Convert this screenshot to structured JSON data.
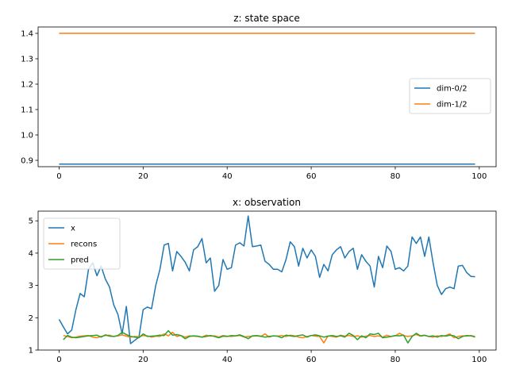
{
  "chart_data": [
    {
      "type": "line",
      "title": "z: state space",
      "xlabel": "",
      "ylabel": "",
      "xlim": [
        -5,
        104
      ],
      "ylim": [
        0.875,
        1.425
      ],
      "xticks": [
        0,
        20,
        40,
        60,
        80,
        100
      ],
      "yticks": [
        0.9,
        1.0,
        1.1,
        1.2,
        1.3,
        1.4
      ],
      "ytick_labels": [
        "0.9",
        "1.0",
        "1.1",
        "1.2",
        "1.3",
        "1.4"
      ],
      "legend_position": "center-right",
      "grid": false,
      "series": [
        {
          "name": "dim-0/2",
          "color": "#1f77b4",
          "x_range": [
            0,
            99
          ],
          "constant": 0.885
        },
        {
          "name": "dim-1/2",
          "color": "#ff7f0e",
          "x_range": [
            0,
            99
          ],
          "constant": 1.4
        }
      ]
    },
    {
      "type": "line",
      "title": "x: observation",
      "xlabel": "",
      "ylabel": "",
      "xlim": [
        -5,
        104
      ],
      "ylim": [
        1.0,
        5.3
      ],
      "xticks": [
        0,
        20,
        40,
        60,
        80,
        100
      ],
      "yticks": [
        1,
        2,
        3,
        4,
        5
      ],
      "ytick_labels": [
        "1",
        "2",
        "3",
        "4",
        "5"
      ],
      "legend_position": "top-left",
      "grid": false,
      "series": [
        {
          "name": "x",
          "color": "#1f77b4",
          "x_start": 0,
          "values": [
            1.95,
            1.72,
            1.5,
            1.62,
            2.25,
            2.75,
            2.65,
            3.5,
            3.7,
            3.3,
            3.6,
            3.2,
            2.95,
            2.4,
            2.1,
            1.5,
            2.35,
            1.2,
            1.3,
            1.4,
            2.25,
            2.33,
            2.28,
            3.0,
            3.5,
            4.25,
            4.3,
            3.45,
            4.05,
            3.9,
            3.72,
            3.45,
            4.1,
            4.2,
            4.45,
            3.7,
            3.85,
            2.82,
            3.0,
            3.8,
            3.5,
            3.55,
            4.25,
            4.32,
            4.22,
            5.15,
            4.2,
            4.22,
            4.25,
            3.75,
            3.65,
            3.5,
            3.5,
            3.42,
            3.8,
            4.35,
            4.2,
            3.6,
            4.15,
            3.85,
            4.1,
            3.9,
            3.25,
            3.65,
            3.45,
            3.95,
            4.1,
            4.2,
            3.85,
            4.05,
            4.15,
            3.5,
            3.95,
            3.75,
            3.6,
            2.95,
            3.9,
            3.55,
            4.22,
            4.05,
            3.5,
            3.55,
            3.45,
            3.6,
            4.5,
            4.3,
            4.5,
            3.9,
            4.5,
            3.7,
            3.0,
            2.72,
            2.9,
            2.95,
            2.9,
            3.6,
            3.62,
            3.4,
            3.28,
            3.27
          ]
        },
        {
          "name": "recons",
          "color": "#ff7f0e",
          "x_start": 1,
          "values": [
            1.45,
            1.42,
            1.38,
            1.4,
            1.43,
            1.44,
            1.45,
            1.4,
            1.38,
            1.42,
            1.45,
            1.46,
            1.42,
            1.44,
            1.47,
            1.43,
            1.4,
            1.42,
            1.41,
            1.45,
            1.44,
            1.4,
            1.43,
            1.42,
            1.5,
            1.44,
            1.55,
            1.42,
            1.45,
            1.4,
            1.44,
            1.43,
            1.42,
            1.4,
            1.46,
            1.43,
            1.44,
            1.4,
            1.45,
            1.43,
            1.42,
            1.44,
            1.45,
            1.4,
            1.42,
            1.43,
            1.44,
            1.42,
            1.5,
            1.4,
            1.44,
            1.43,
            1.45,
            1.42,
            1.46,
            1.44,
            1.4,
            1.38,
            1.42,
            1.45,
            1.43,
            1.42,
            1.22,
            1.44,
            1.42,
            1.4,
            1.46,
            1.43,
            1.45,
            1.42,
            1.44,
            1.4,
            1.43,
            1.45,
            1.42,
            1.44,
            1.4,
            1.46,
            1.42,
            1.44,
            1.52,
            1.45,
            1.42,
            1.44,
            1.48,
            1.43,
            1.45,
            1.42,
            1.4,
            1.44,
            1.42,
            1.45,
            1.5,
            1.38,
            1.42,
            1.44,
            1.43,
            1.45,
            1.42
          ]
        },
        {
          "name": "pred",
          "color": "#2ca02c",
          "x_start": 1,
          "values": [
            1.32,
            1.45,
            1.4,
            1.38,
            1.4,
            1.42,
            1.44,
            1.45,
            1.46,
            1.4,
            1.47,
            1.43,
            1.42,
            1.45,
            1.55,
            1.48,
            1.42,
            1.4,
            1.38,
            1.5,
            1.42,
            1.43,
            1.44,
            1.46,
            1.45,
            1.6,
            1.46,
            1.48,
            1.45,
            1.35,
            1.42,
            1.44,
            1.43,
            1.4,
            1.42,
            1.45,
            1.42,
            1.38,
            1.43,
            1.42,
            1.45,
            1.44,
            1.47,
            1.42,
            1.35,
            1.44,
            1.45,
            1.43,
            1.4,
            1.42,
            1.44,
            1.43,
            1.38,
            1.46,
            1.44,
            1.42,
            1.45,
            1.47,
            1.4,
            1.45,
            1.47,
            1.44,
            1.4,
            1.43,
            1.45,
            1.42,
            1.44,
            1.4,
            1.52,
            1.45,
            1.32,
            1.44,
            1.38,
            1.5,
            1.48,
            1.52,
            1.38,
            1.4,
            1.42,
            1.45,
            1.44,
            1.46,
            1.22,
            1.42,
            1.52,
            1.44,
            1.46,
            1.42,
            1.44,
            1.4,
            1.45,
            1.43,
            1.46,
            1.44,
            1.35,
            1.42,
            1.45,
            1.44,
            1.4
          ]
        }
      ]
    }
  ]
}
